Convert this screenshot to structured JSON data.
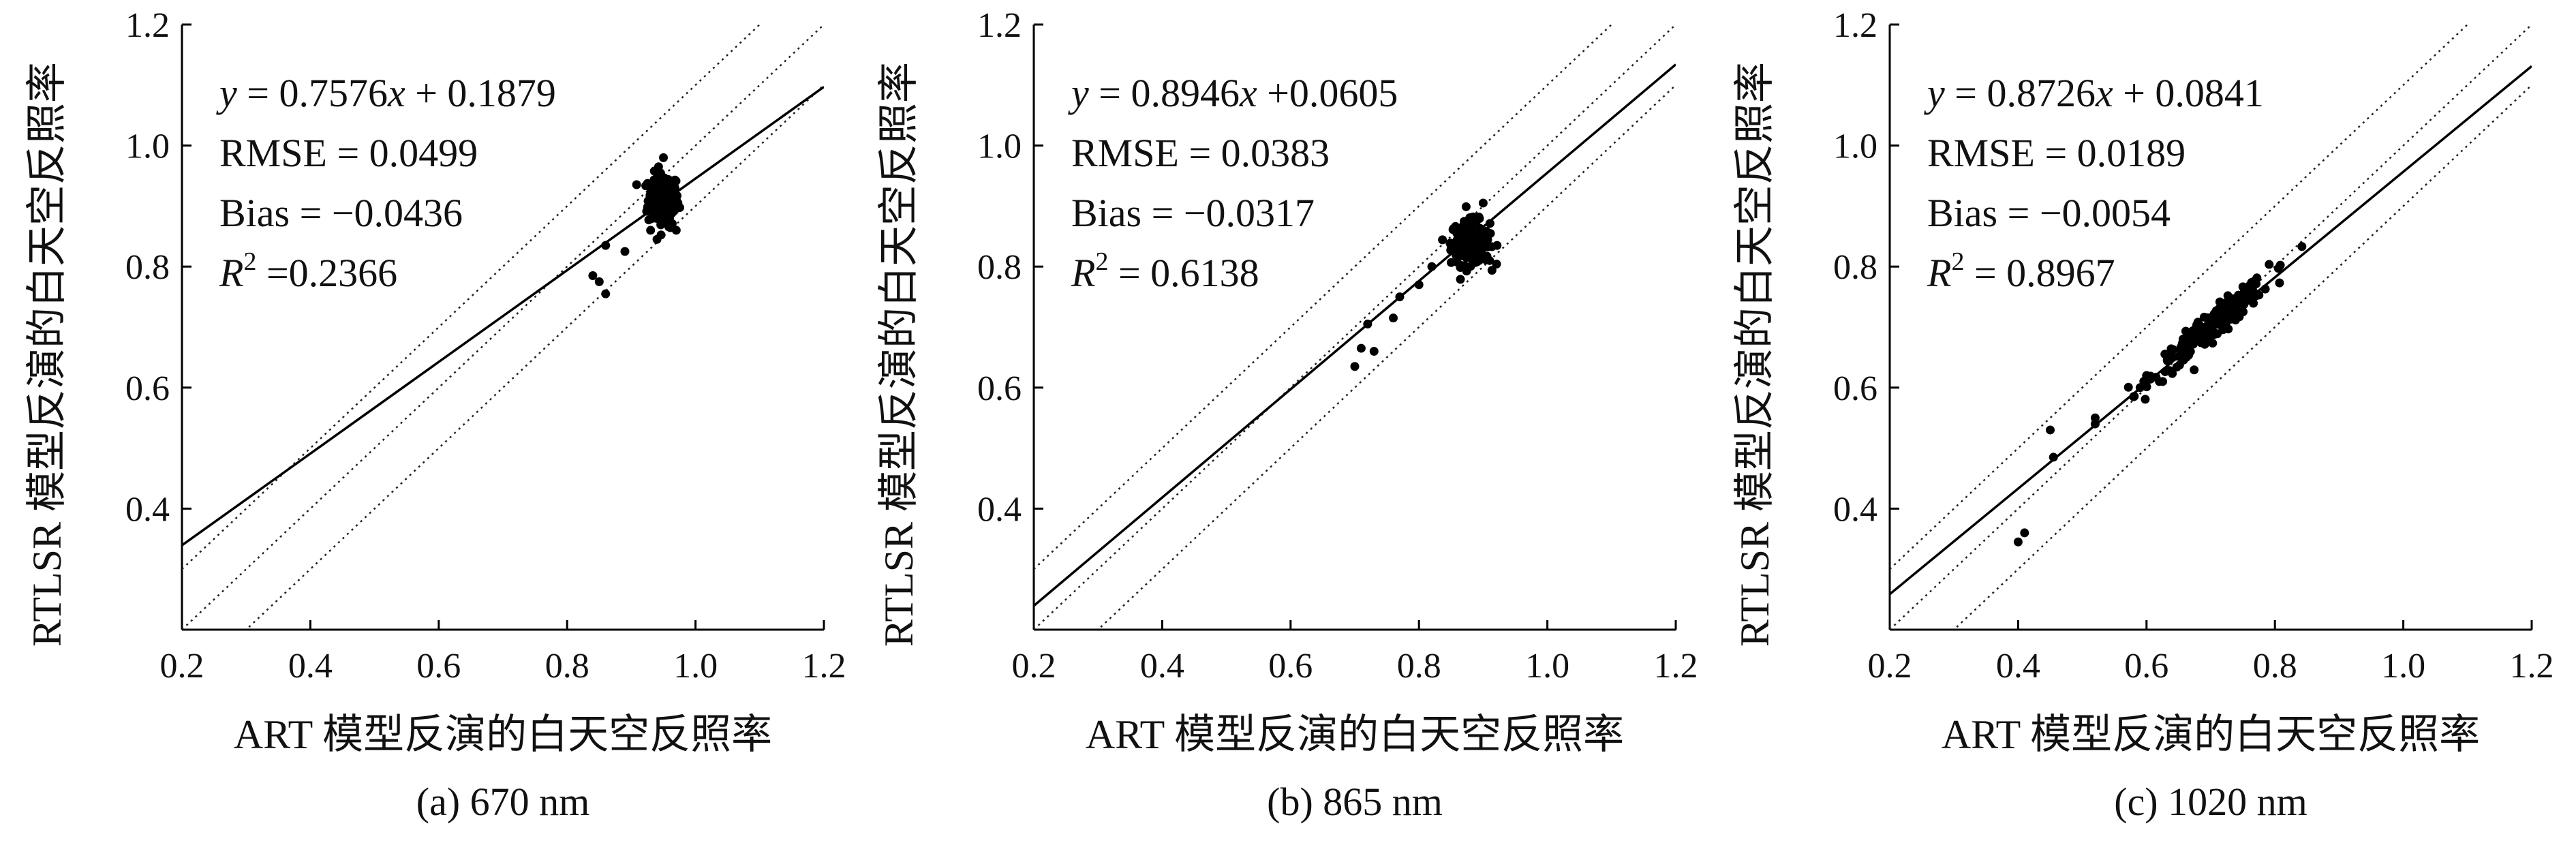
{
  "chart_data": [
    {
      "type": "scatter",
      "caption": "(a) 670 nm",
      "xlabel": "ART 模型反演的白天空反照率",
      "ylabel": "RTLSR 模型反演的白天空反照率",
      "xlim": [
        0.2,
        1.2
      ],
      "ylim": [
        0.2,
        1.2
      ],
      "xticks": [
        "0.2",
        "0.4",
        "0.6",
        "0.8",
        "1.0",
        "1.2"
      ],
      "yticks": [
        "0.4",
        "0.6",
        "0.8",
        "1.0",
        "1.2"
      ],
      "stats": {
        "equation": "y = 0.7576x + 0.1879",
        "rmse": "RMSE = 0.0499",
        "bias": "Bias = −0.0436",
        "r2": "R² =0.2366"
      },
      "fit": {
        "slope": 0.7576,
        "intercept": 0.1879
      },
      "reference_lines": [
        {
          "slope": 1,
          "intercept": 0.1
        },
        {
          "slope": 1,
          "intercept": 0
        },
        {
          "slope": 1,
          "intercept": -0.1
        }
      ],
      "cluster": {
        "center": [
          0.95,
          0.91
        ],
        "spread": [
          0.012,
          0.022
        ],
        "count": 180
      },
      "points": [
        [
          0.84,
          0.785
        ],
        [
          0.85,
          0.775
        ],
        [
          0.86,
          0.755
        ],
        [
          0.86,
          0.835
        ],
        [
          0.89,
          0.825
        ],
        [
          0.95,
          0.98
        ],
        [
          0.94,
          0.845
        ],
        [
          0.93,
          0.86
        ],
        [
          0.97,
          0.86
        ]
      ]
    },
    {
      "type": "scatter",
      "caption": "(b) 865 nm",
      "xlabel": "ART 模型反演的白天空反照率",
      "ylabel": "RTLSR 模型反演的白天空反照率",
      "xlim": [
        0.2,
        1.2
      ],
      "ylim": [
        0.2,
        1.2
      ],
      "xticks": [
        "0.2",
        "0.4",
        "0.6",
        "0.8",
        "1.0",
        "1.2"
      ],
      "yticks": [
        "0.4",
        "0.6",
        "0.8",
        "1.0",
        "1.2"
      ],
      "stats": {
        "equation": "y = 0.8946x +0.0605",
        "rmse": "RMSE = 0.0383",
        "bias": "Bias = −0.0317",
        "r2": "R² = 0.6138"
      },
      "fit": {
        "slope": 0.8946,
        "intercept": 0.0605
      },
      "reference_lines": [
        {
          "slope": 1,
          "intercept": 0.1
        },
        {
          "slope": 1,
          "intercept": 0
        },
        {
          "slope": 1,
          "intercept": -0.1
        }
      ],
      "cluster": {
        "center": [
          0.88,
          0.84
        ],
        "spread": [
          0.015,
          0.018
        ],
        "count": 200
      },
      "points": [
        [
          0.7,
          0.635
        ],
        [
          0.71,
          0.665
        ],
        [
          0.72,
          0.705
        ],
        [
          0.73,
          0.66
        ],
        [
          0.76,
          0.715
        ],
        [
          0.77,
          0.75
        ],
        [
          0.8,
          0.77
        ],
        [
          0.82,
          0.8
        ],
        [
          0.9,
          0.905
        ],
        [
          0.91,
          0.81
        ]
      ]
    },
    {
      "type": "scatter",
      "caption": "(c) 1020 nm",
      "xlabel": "ART 模型反演的白天空反照率",
      "ylabel": "RTLSR 模型反演的白天空反照率",
      "xlim": [
        0.2,
        1.2
      ],
      "ylim": [
        0.2,
        1.2
      ],
      "xticks": [
        "0.2",
        "0.4",
        "0.6",
        "0.8",
        "1.0",
        "1.2"
      ],
      "yticks": [
        "0.4",
        "0.6",
        "0.8",
        "1.0",
        "1.2"
      ],
      "stats": {
        "equation": "y = 0.8726x + 0.0841",
        "rmse": "RMSE = 0.0189",
        "bias": "Bias = −0.0054",
        "r2": "R² = 0.8967"
      },
      "fit": {
        "slope": 0.8726,
        "intercept": 0.0841
      },
      "reference_lines": [
        {
          "slope": 1,
          "intercept": 0.1
        },
        {
          "slope": 1,
          "intercept": 0
        },
        {
          "slope": 1,
          "intercept": -0.1
        }
      ],
      "cluster": {
        "center": [
          0.7,
          0.7
        ],
        "spread": [
          0.045,
          0.03
        ],
        "count": 220,
        "along_diagonal": true
      },
      "points": [
        [
          0.4,
          0.345
        ],
        [
          0.41,
          0.36
        ],
        [
          0.45,
          0.53
        ],
        [
          0.455,
          0.485
        ],
        [
          0.52,
          0.55
        ],
        [
          0.52,
          0.54
        ],
        [
          0.58,
          0.585
        ],
        [
          0.59,
          0.6
        ],
        [
          0.6,
          0.62
        ],
        [
          0.62,
          0.61
        ]
      ]
    }
  ]
}
